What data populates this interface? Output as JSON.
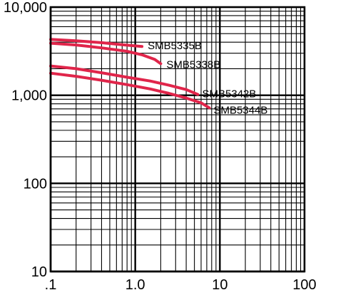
{
  "chart_data": {
    "type": "line",
    "title": "",
    "xlabel": "",
    "ylabel": "",
    "x_scale": "log",
    "y_scale": "log",
    "xlim": [
      0.1,
      100
    ],
    "ylim": [
      10,
      10000
    ],
    "grid": true,
    "x_ticks": [
      {
        "value": 0.1,
        "label": ".1"
      },
      {
        "value": 1,
        "label": "1.0"
      },
      {
        "value": 10,
        "label": "10"
      },
      {
        "value": 100,
        "label": "100"
      }
    ],
    "y_ticks": [
      {
        "value": 10,
        "label": "10"
      },
      {
        "value": 100,
        "label": "100"
      },
      {
        "value": 1000,
        "label": "1,000"
      },
      {
        "value": 10000,
        "label": "10,000"
      }
    ],
    "line_color": "#e0254a",
    "series": [
      {
        "name": "SMB5335B",
        "x": [
          0.1,
          0.2,
          0.4,
          0.7,
          1.2
        ],
        "y": [
          4300,
          4150,
          3950,
          3750,
          3580
        ]
      },
      {
        "name": "SMB5338B",
        "x": [
          0.1,
          0.2,
          0.4,
          0.8,
          1.2,
          1.7,
          2.0
        ],
        "y": [
          3900,
          3720,
          3450,
          3150,
          2880,
          2550,
          2280
        ]
      },
      {
        "name": "SMB5342B",
        "x": [
          0.1,
          0.2,
          0.4,
          0.8,
          1.5,
          2.5,
          4.0,
          5.5
        ],
        "y": [
          2150,
          2000,
          1800,
          1600,
          1450,
          1300,
          1160,
          1020
        ]
      },
      {
        "name": "SMB5344B",
        "x": [
          0.1,
          0.2,
          0.4,
          0.8,
          1.5,
          2.5,
          4.0,
          6.0,
          7.5
        ],
        "y": [
          1780,
          1640,
          1480,
          1320,
          1180,
          1050,
          930,
          820,
          720
        ]
      }
    ]
  }
}
